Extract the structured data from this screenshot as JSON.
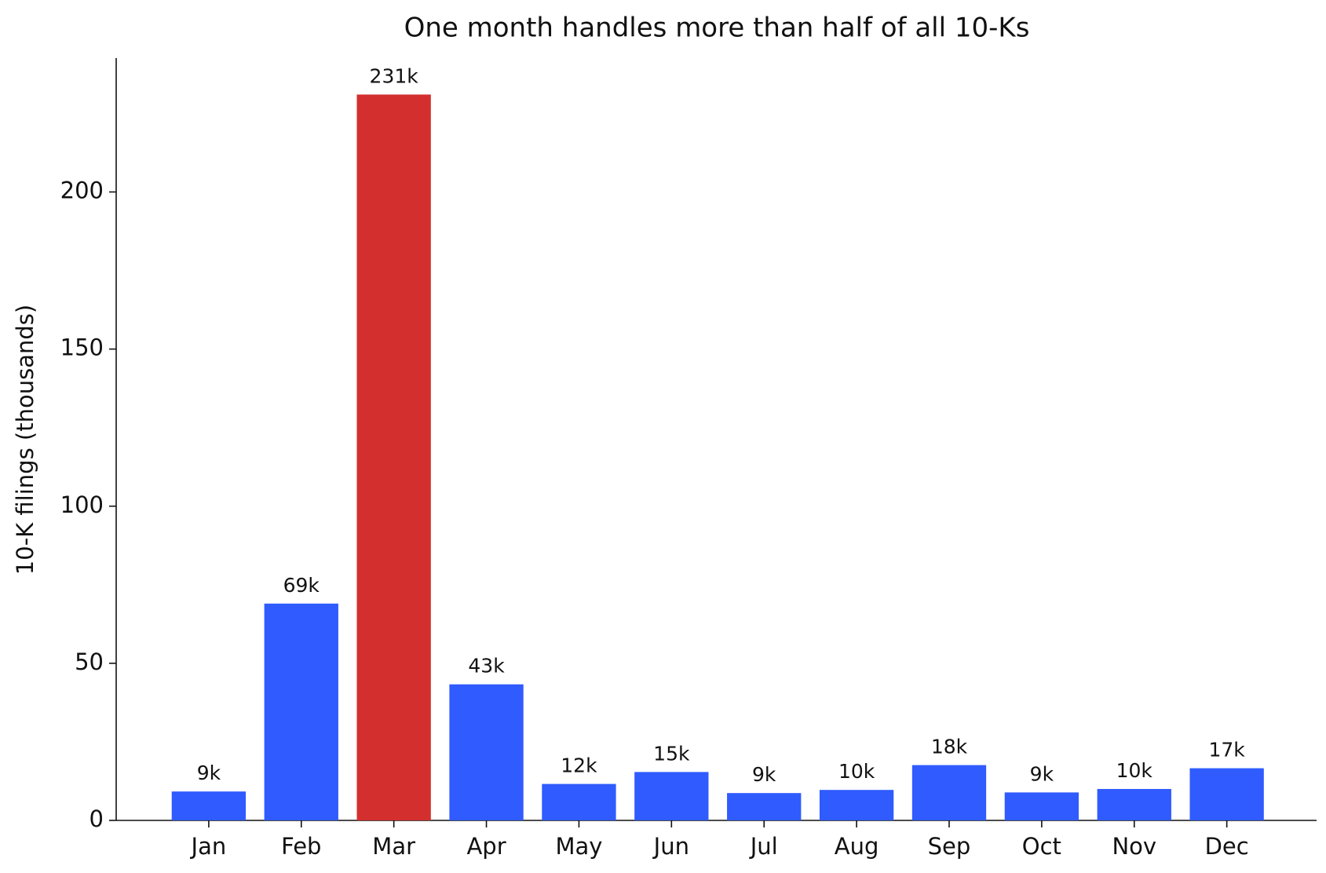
{
  "chart_data": {
    "type": "bar",
    "title": "One month handles more than half of all 10-Ks",
    "y_label": "10-K filings (thousands)",
    "categories": [
      "Jan",
      "Feb",
      "Mar",
      "Apr",
      "May",
      "Jun",
      "Jul",
      "Aug",
      "Sep",
      "Oct",
      "Nov",
      "Dec"
    ],
    "values": [
      9.2,
      69,
      231,
      43.3,
      11.6,
      15.4,
      8.7,
      9.7,
      17.6,
      8.9,
      10.0,
      16.6
    ],
    "value_labels": [
      "9k",
      "69k",
      "231k",
      "43k",
      "12k",
      "15k",
      "9k",
      "10k",
      "18k",
      "9k",
      "10k",
      "17k"
    ],
    "colors": [
      "#2f5bff",
      "#2f5bff",
      "#d32f2f",
      "#2f5bff",
      "#2f5bff",
      "#2f5bff",
      "#2f5bff",
      "#2f5bff",
      "#2f5bff",
      "#2f5bff",
      "#2f5bff",
      "#2f5bff"
    ],
    "ylim": [
      0,
      242.6
    ],
    "yticks": [
      0,
      50,
      100,
      150,
      200
    ],
    "grid": false
  }
}
